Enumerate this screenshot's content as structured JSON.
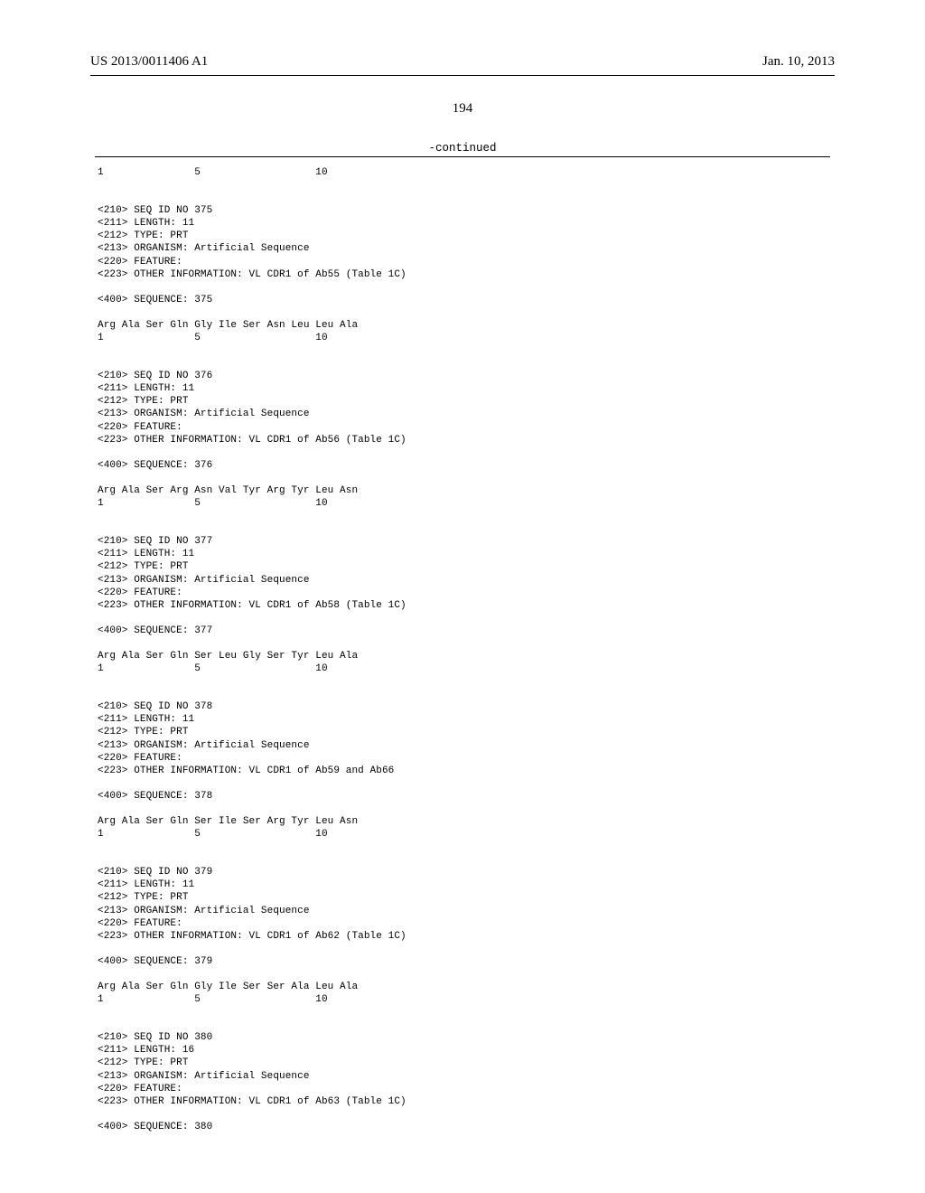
{
  "header": {
    "pub_number": "US 2013/0011406 A1",
    "pub_date": "Jan. 10, 2013"
  },
  "page_number": "194",
  "continued_label": "-continued",
  "top_residual": {
    "num_1": "1",
    "num_5": "5",
    "num_10": "10"
  },
  "sequences": [
    {
      "seq_id": "<210> SEQ ID NO 375",
      "length": "<211> LENGTH: 11",
      "type": "<212> TYPE: PRT",
      "organism": "<213> ORGANISM: Artificial Sequence",
      "feature": "<220> FEATURE:",
      "other_info": "<223> OTHER INFORMATION: VL CDR1 of Ab55 (Table 1C)",
      "seq_label": "<400> SEQUENCE: 375",
      "residues": "Arg Ala Ser Gln Gly Ile Ser Asn Leu Leu Ala",
      "num_1": "1",
      "num_5": "5",
      "num_10": "10"
    },
    {
      "seq_id": "<210> SEQ ID NO 376",
      "length": "<211> LENGTH: 11",
      "type": "<212> TYPE: PRT",
      "organism": "<213> ORGANISM: Artificial Sequence",
      "feature": "<220> FEATURE:",
      "other_info": "<223> OTHER INFORMATION: VL CDR1 of Ab56 (Table 1C)",
      "seq_label": "<400> SEQUENCE: 376",
      "residues": "Arg Ala Ser Arg Asn Val Tyr Arg Tyr Leu Asn",
      "num_1": "1",
      "num_5": "5",
      "num_10": "10"
    },
    {
      "seq_id": "<210> SEQ ID NO 377",
      "length": "<211> LENGTH: 11",
      "type": "<212> TYPE: PRT",
      "organism": "<213> ORGANISM: Artificial Sequence",
      "feature": "<220> FEATURE:",
      "other_info": "<223> OTHER INFORMATION: VL CDR1 of Ab58 (Table 1C)",
      "seq_label": "<400> SEQUENCE: 377",
      "residues": "Arg Ala Ser Gln Ser Leu Gly Ser Tyr Leu Ala",
      "num_1": "1",
      "num_5": "5",
      "num_10": "10"
    },
    {
      "seq_id": "<210> SEQ ID NO 378",
      "length": "<211> LENGTH: 11",
      "type": "<212> TYPE: PRT",
      "organism": "<213> ORGANISM: Artificial Sequence",
      "feature": "<220> FEATURE:",
      "other_info": "<223> OTHER INFORMATION: VL CDR1 of Ab59 and Ab66",
      "seq_label": "<400> SEQUENCE: 378",
      "residues": "Arg Ala Ser Gln Ser Ile Ser Arg Tyr Leu Asn",
      "num_1": "1",
      "num_5": "5",
      "num_10": "10"
    },
    {
      "seq_id": "<210> SEQ ID NO 379",
      "length": "<211> LENGTH: 11",
      "type": "<212> TYPE: PRT",
      "organism": "<213> ORGANISM: Artificial Sequence",
      "feature": "<220> FEATURE:",
      "other_info": "<223> OTHER INFORMATION: VL CDR1 of Ab62 (Table 1C)",
      "seq_label": "<400> SEQUENCE: 379",
      "residues": "Arg Ala Ser Gln Gly Ile Ser Ser Ala Leu Ala",
      "num_1": "1",
      "num_5": "5",
      "num_10": "10"
    },
    {
      "seq_id": "<210> SEQ ID NO 380",
      "length": "<211> LENGTH: 16",
      "type": "<212> TYPE: PRT",
      "organism": "<213> ORGANISM: Artificial Sequence",
      "feature": "<220> FEATURE:",
      "other_info": "<223> OTHER INFORMATION: VL CDR1 of Ab63 (Table 1C)",
      "seq_label": "<400> SEQUENCE: 380",
      "residues": "",
      "num_1": "",
      "num_5": "",
      "num_10": ""
    }
  ]
}
